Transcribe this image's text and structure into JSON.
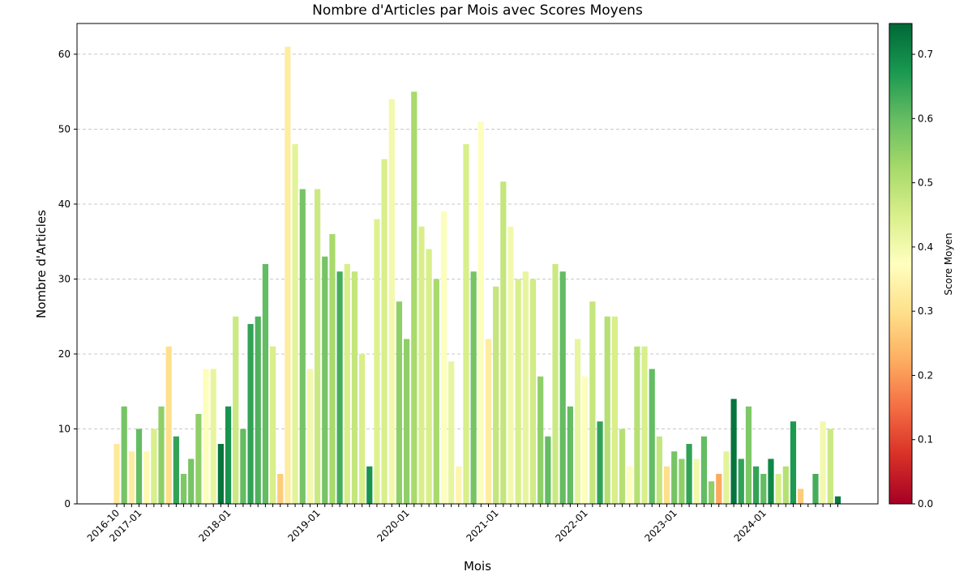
{
  "chart_data": {
    "type": "bar",
    "title": "Nombre d'Articles par Mois avec Scores Moyens",
    "x_label": "Mois",
    "y_label": "Nombre d'Articles",
    "colorbar_label": "Score Moyen",
    "colormap": "RdYlGn",
    "categories": [
      "2016-10",
      null,
      null,
      "2017-01",
      null,
      null,
      null,
      null,
      null,
      null,
      null,
      null,
      null,
      null,
      null,
      "2018-01",
      null,
      null,
      null,
      null,
      null,
      null,
      null,
      null,
      null,
      null,
      null,
      "2019-01",
      null,
      null,
      null,
      null,
      null,
      null,
      null,
      null,
      null,
      null,
      null,
      "2020-01",
      null,
      null,
      null,
      null,
      null,
      null,
      null,
      null,
      null,
      null,
      null,
      "2021-01",
      null,
      null,
      null,
      null,
      null,
      null,
      null,
      null,
      null,
      null,
      null,
      "2022-01",
      null,
      null,
      null,
      null,
      null,
      null,
      null,
      null,
      null,
      null,
      null,
      "2023-01",
      null,
      null,
      null,
      null,
      null,
      null,
      null,
      null,
      null,
      null,
      null,
      "2024-01",
      null,
      null,
      null,
      null,
      null,
      null,
      null,
      null,
      null,
      null
    ],
    "values": [
      8,
      13,
      7,
      10,
      7,
      10,
      13,
      21,
      9,
      4,
      6,
      12,
      18,
      18,
      8,
      13,
      25,
      10,
      24,
      25,
      32,
      21,
      4,
      61,
      48,
      42,
      18,
      42,
      33,
      36,
      31,
      32,
      31,
      20,
      5,
      38,
      46,
      54,
      27,
      22,
      55,
      37,
      34,
      30,
      39,
      19,
      5,
      48,
      31,
      51,
      22,
      29,
      43,
      37,
      30,
      31,
      30,
      17,
      9,
      32,
      31,
      13,
      22,
      17,
      27,
      11,
      25,
      25,
      10,
      5,
      21,
      21,
      18,
      9,
      5,
      7,
      6,
      8,
      6,
      9,
      3,
      4,
      7,
      14,
      6,
      13,
      5,
      4,
      6,
      4,
      5,
      11,
      2,
      0,
      4,
      11,
      10,
      1
    ],
    "scores": [
      0.32,
      0.58,
      0.33,
      0.6,
      0.36,
      0.45,
      0.55,
      0.3,
      0.65,
      0.57,
      0.58,
      0.55,
      0.38,
      0.42,
      0.73,
      0.68,
      0.47,
      0.6,
      0.65,
      0.62,
      0.6,
      0.45,
      0.27,
      0.33,
      0.43,
      0.58,
      0.4,
      0.47,
      0.58,
      0.52,
      0.63,
      0.45,
      0.48,
      0.45,
      0.68,
      0.44,
      0.45,
      0.4,
      0.55,
      0.55,
      0.52,
      0.45,
      0.45,
      0.52,
      0.38,
      0.42,
      0.35,
      0.45,
      0.58,
      0.38,
      0.33,
      0.48,
      0.48,
      0.4,
      0.45,
      0.42,
      0.46,
      0.55,
      0.6,
      0.47,
      0.6,
      0.6,
      0.42,
      0.38,
      0.48,
      0.65,
      0.5,
      0.45,
      0.5,
      0.38,
      0.5,
      0.45,
      0.6,
      0.48,
      0.3,
      0.58,
      0.55,
      0.65,
      0.4,
      0.6,
      0.55,
      0.22,
      0.43,
      0.73,
      0.65,
      0.57,
      0.65,
      0.6,
      0.7,
      0.45,
      0.5,
      0.67,
      0.27,
      0.5,
      0.63,
      0.4,
      0.47,
      0.72
    ],
    "ylim": [
      0,
      64.1
    ],
    "yticks": [
      0,
      10,
      20,
      30,
      40,
      50,
      60
    ],
    "grid": true,
    "clim": [
      0,
      0.748
    ],
    "cticks": [
      {
        "value": 0,
        "label": "0.0"
      },
      {
        "value": 0.1,
        "label": "0.1"
      },
      {
        "value": 0.2,
        "label": "0.2"
      },
      {
        "value": 0.3,
        "label": "0.3"
      },
      {
        "value": 0.4,
        "label": "0.4"
      },
      {
        "value": 0.5,
        "label": "0.5"
      },
      {
        "value": 0.6,
        "label": "0.6"
      },
      {
        "value": 0.7,
        "label": "0.7"
      }
    ]
  }
}
